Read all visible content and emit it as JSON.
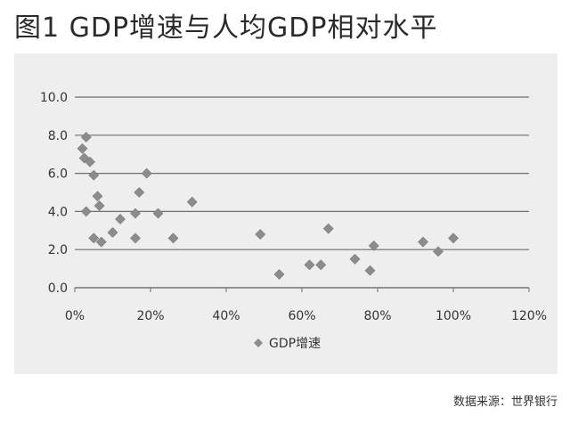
{
  "title": "图1 GDP增速与人均GDP相对水平",
  "source": "数据来源：世界银行",
  "colors": {
    "marker": "#8c8c8c",
    "grid": "#6f6f6f",
    "background": "#eeeeee",
    "axis": "#6f6f6f"
  },
  "chart_data": {
    "type": "scatter",
    "title": "",
    "xlabel": "",
    "ylabel": "",
    "xlim": [
      0,
      120
    ],
    "ylim": [
      0,
      10
    ],
    "x_ticks": [
      "0%",
      "20%",
      "40%",
      "60%",
      "80%",
      "100%",
      "120%"
    ],
    "y_ticks": [
      "0.0",
      "2.0",
      "4.0",
      "6.0",
      "8.0",
      "10.0"
    ],
    "grid": "horizontal",
    "legend": "bottom-left",
    "series": [
      {
        "name": "GDP增速",
        "marker": "diamond",
        "points": [
          {
            "x": 2,
            "y": 7.3
          },
          {
            "x": 3,
            "y": 7.9
          },
          {
            "x": 2.5,
            "y": 6.8
          },
          {
            "x": 4,
            "y": 6.6
          },
          {
            "x": 5,
            "y": 5.9
          },
          {
            "x": 6,
            "y": 4.8
          },
          {
            "x": 6.5,
            "y": 4.3
          },
          {
            "x": 3,
            "y": 4.0
          },
          {
            "x": 5,
            "y": 2.6
          },
          {
            "x": 7,
            "y": 2.4
          },
          {
            "x": 10,
            "y": 2.9
          },
          {
            "x": 12,
            "y": 3.6
          },
          {
            "x": 16,
            "y": 3.9
          },
          {
            "x": 17,
            "y": 5.0
          },
          {
            "x": 19,
            "y": 6.0
          },
          {
            "x": 16,
            "y": 2.6
          },
          {
            "x": 22,
            "y": 3.9
          },
          {
            "x": 26,
            "y": 2.6
          },
          {
            "x": 31,
            "y": 4.5
          },
          {
            "x": 49,
            "y": 2.8
          },
          {
            "x": 54,
            "y": 0.7
          },
          {
            "x": 62,
            "y": 1.2
          },
          {
            "x": 65,
            "y": 1.2
          },
          {
            "x": 67,
            "y": 3.1
          },
          {
            "x": 74,
            "y": 1.5
          },
          {
            "x": 78,
            "y": 0.9
          },
          {
            "x": 79,
            "y": 2.2
          },
          {
            "x": 92,
            "y": 2.4
          },
          {
            "x": 96,
            "y": 1.9
          },
          {
            "x": 100,
            "y": 2.6
          }
        ]
      }
    ]
  }
}
